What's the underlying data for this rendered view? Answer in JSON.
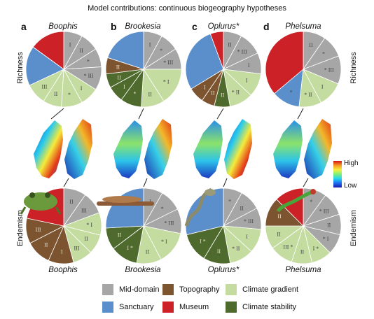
{
  "figure_title": "Model contributions: continuous biogeography hypotheses",
  "panels": [
    {
      "letter": "a",
      "taxon_top": "Boophis",
      "taxon_bottom": "Boophis"
    },
    {
      "letter": "b",
      "taxon_top": "Brookesia",
      "taxon_bottom": "Brookesia"
    },
    {
      "letter": "c",
      "taxon_top": "Oplurus*",
      "taxon_bottom": "Oplurus*"
    },
    {
      "letter": "d",
      "taxon_top": "Phelsuma",
      "taxon_bottom": "Phelsuma"
    }
  ],
  "row_labels": {
    "richness_left": "Richness",
    "richness_right": "Richness",
    "endemism_left": "Endemism",
    "endemism_right": "Endemism"
  },
  "scale": {
    "high": "High",
    "low": "Low"
  },
  "colors": {
    "Mid-domain": "#a6a6a6",
    "Sanctuary": "#5b8fcc",
    "Topography": "#7d5430",
    "Museum": "#cc2127",
    "Climate gradient": "#c4dca0",
    "Climate stability": "#4f6a2d"
  },
  "legend": [
    {
      "label": "Mid-domain",
      "color_key": "Mid-domain"
    },
    {
      "label": "Topography",
      "color_key": "Topography"
    },
    {
      "label": "Climate gradient",
      "color_key": "Climate gradient"
    },
    {
      "label": "Sanctuary",
      "color_key": "Sanctuary"
    },
    {
      "label": "Museum",
      "color_key": "Museum"
    },
    {
      "label": "Climate stability",
      "color_key": "Climate stability"
    }
  ],
  "chart_data": [
    {
      "type": "pie",
      "panel": "a",
      "row": "Richness",
      "slices": [
        {
          "model": "Mid-domain",
          "value": 8,
          "label": "I"
        },
        {
          "model": "Mid-domain",
          "value": 8,
          "label": "II"
        },
        {
          "model": "Mid-domain",
          "value": 8,
          "label": "*"
        },
        {
          "model": "Mid-domain",
          "value": 10,
          "label": "* III"
        },
        {
          "model": "Climate gradient",
          "value": 8,
          "label": "I"
        },
        {
          "model": "Climate gradient",
          "value": 9,
          "label": "*"
        },
        {
          "model": "Climate gradient",
          "value": 8,
          "label": "II"
        },
        {
          "model": "Climate gradient",
          "value": 9,
          "label": "III"
        },
        {
          "model": "Sanctuary",
          "value": 17,
          "label": ""
        },
        {
          "model": "Museum",
          "value": 15,
          "label": ""
        }
      ]
    },
    {
      "type": "pie",
      "panel": "b",
      "row": "Richness",
      "slices": [
        {
          "model": "Mid-domain",
          "value": 8,
          "label": "I"
        },
        {
          "model": "Mid-domain",
          "value": 8,
          "label": "*"
        },
        {
          "model": "Mid-domain",
          "value": 9,
          "label": "* III"
        },
        {
          "model": "Climate gradient",
          "value": 16,
          "label": "* I"
        },
        {
          "model": "Climate gradient",
          "value": 10,
          "label": "II"
        },
        {
          "model": "Climate stability",
          "value": 9,
          "label": "*"
        },
        {
          "model": "Climate stability",
          "value": 7,
          "label": "I"
        },
        {
          "model": "Climate stability",
          "value": 6,
          "label": "II"
        },
        {
          "model": "Topography",
          "value": 7,
          "label": "II"
        },
        {
          "model": "Sanctuary",
          "value": 20,
          "label": ""
        }
      ]
    },
    {
      "type": "pie",
      "panel": "c",
      "row": "Richness",
      "slices": [
        {
          "model": "Mid-domain",
          "value": 7,
          "label": "II"
        },
        {
          "model": "Mid-domain",
          "value": 9,
          "label": "* III"
        },
        {
          "model": "Mid-domain",
          "value": 8,
          "label": "I"
        },
        {
          "model": "Climate gradient",
          "value": 9,
          "label": "I"
        },
        {
          "model": "Climate gradient",
          "value": 9,
          "label": "* II"
        },
        {
          "model": "Climate stability",
          "value": 6,
          "label": "II"
        },
        {
          "model": "Topography",
          "value": 5,
          "label": "II"
        },
        {
          "model": "Topography",
          "value": 6,
          "label": "I"
        },
        {
          "model": "Sanctuary",
          "value": 25,
          "label": ""
        },
        {
          "model": "Museum",
          "value": 5,
          "label": ""
        }
      ]
    },
    {
      "type": "pie",
      "panel": "d",
      "row": "Richness",
      "slices": [
        {
          "model": "Mid-domain",
          "value": 8,
          "label": "II"
        },
        {
          "model": "Mid-domain",
          "value": 8,
          "label": "*"
        },
        {
          "model": "Mid-domain",
          "value": 10,
          "label": "* III"
        },
        {
          "model": "Climate gradient",
          "value": 9,
          "label": "I"
        },
        {
          "model": "Climate gradient",
          "value": 8,
          "label": "* II"
        },
        {
          "model": "Sanctuary",
          "value": 10,
          "label": "*"
        },
        {
          "model": "Museum",
          "value": 30,
          "label": ""
        }
      ]
    },
    {
      "type": "pie",
      "panel": "a",
      "row": "Endemism",
      "slices": [
        {
          "model": "Mid-domain",
          "value": 8,
          "label": "II"
        },
        {
          "model": "Mid-domain",
          "value": 8,
          "label": "III"
        },
        {
          "model": "Climate gradient",
          "value": 8,
          "label": "* I"
        },
        {
          "model": "Climate gradient",
          "value": 7,
          "label": "II"
        },
        {
          "model": "Climate gradient",
          "value": 7,
          "label": "III"
        },
        {
          "model": "Topography",
          "value": 9,
          "label": "I"
        },
        {
          "model": "Topography",
          "value": 9,
          "label": "II"
        },
        {
          "model": "Topography",
          "value": 9,
          "label": "III"
        },
        {
          "model": "Museum",
          "value": 18,
          "label": ""
        }
      ]
    },
    {
      "type": "pie",
      "panel": "b",
      "row": "Endemism",
      "slices": [
        {
          "model": "Mid-domain",
          "value": 7,
          "label": "I"
        },
        {
          "model": "Mid-domain",
          "value": 8,
          "label": "*"
        },
        {
          "model": "Mid-domain",
          "value": 9,
          "label": "* III"
        },
        {
          "model": "Climate gradient",
          "value": 12,
          "label": "* I"
        },
        {
          "model": "Climate gradient",
          "value": 9,
          "label": "II"
        },
        {
          "model": "Climate stability",
          "value": 10,
          "label": "I *"
        },
        {
          "model": "Climate stability",
          "value": 8,
          "label": "II"
        },
        {
          "model": "Sanctuary",
          "value": 22,
          "label": ""
        }
      ]
    },
    {
      "type": "pie",
      "panel": "c",
      "row": "Endemism",
      "slices": [
        {
          "model": "Mid-domain",
          "value": 7,
          "label": "*"
        },
        {
          "model": "Mid-domain",
          "value": 8,
          "label": "II"
        },
        {
          "model": "Mid-domain",
          "value": 8,
          "label": "* III"
        },
        {
          "model": "Climate gradient",
          "value": 9,
          "label": "I"
        },
        {
          "model": "Climate gradient",
          "value": 9,
          "label": "* II"
        },
        {
          "model": "Climate stability",
          "value": 10,
          "label": "II"
        },
        {
          "model": "Climate stability",
          "value": 11,
          "label": "I *"
        },
        {
          "model": "Sanctuary",
          "value": 25,
          "label": ""
        }
      ]
    },
    {
      "type": "pie",
      "panel": "d",
      "row": "Endemism",
      "slices": [
        {
          "model": "Mid-domain",
          "value": 8,
          "label": "*"
        },
        {
          "model": "Mid-domain",
          "value": 8,
          "label": "* III"
        },
        {
          "model": "Mid-domain",
          "value": 7,
          "label": "II"
        },
        {
          "model": "Mid-domain",
          "value": 7,
          "label": "* I"
        },
        {
          "model": "Climate gradient",
          "value": 7,
          "label": "I *"
        },
        {
          "model": "Climate gradient",
          "value": 7,
          "label": "II"
        },
        {
          "model": "Climate gradient",
          "value": 8,
          "label": "III *"
        },
        {
          "model": "Climate gradient",
          "value": 8,
          "label": "II"
        },
        {
          "model": "Topography",
          "value": 10,
          "label": "II"
        },
        {
          "model": "Museum",
          "value": 10,
          "label": ""
        }
      ]
    }
  ]
}
